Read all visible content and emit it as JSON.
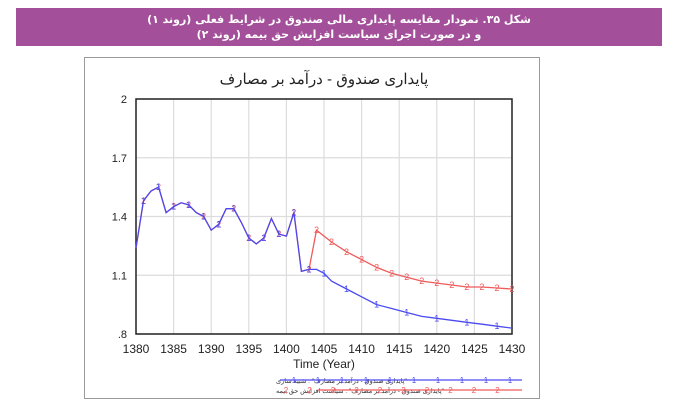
{
  "caption": {
    "line1": "شکل ۳۵. نمودار مقایسه پایداری مالی صندوق در شرایط فعلی (روند ۱)",
    "line2": "و در صورت اجرای سیاست افزایش حق بیمه (روند ۲)",
    "background_color": "#a34f9a"
  },
  "chart_data": {
    "type": "line",
    "title": "پایداری صندوق - درآمد بر مصارف",
    "xlabel": "Time (Year)",
    "ylabel": "",
    "xlim": [
      1380,
      1430
    ],
    "ylim": [
      0.8,
      2.0
    ],
    "x_ticks": [
      "1380",
      "1385",
      "1390",
      "1395",
      "1400",
      "1405",
      "1410",
      "1415",
      "1420",
      "1425",
      "1430"
    ],
    "y_ticks": [
      "2",
      "1.7",
      "1.4",
      "1.1",
      ".8"
    ],
    "grid": true,
    "legend_position": "bottom",
    "series": [
      {
        "name": "\"پایداری صندوق - درآمد بر مصارف\" : شبیه سازی",
        "marker": "1",
        "color": "#4a4af0",
        "x": [
          1380,
          1381,
          1382,
          1383,
          1384,
          1385,
          1386,
          1387,
          1388,
          1389,
          1390,
          1391,
          1392,
          1393,
          1394,
          1395,
          1396,
          1397,
          1398,
          1399,
          1400,
          1401,
          1402,
          1403,
          1404,
          1405,
          1406,
          1408,
          1410,
          1412,
          1414,
          1416,
          1418,
          1420,
          1422,
          1424,
          1426,
          1428,
          1430
        ],
        "y": [
          1.24,
          1.48,
          1.53,
          1.55,
          1.42,
          1.45,
          1.47,
          1.46,
          1.42,
          1.4,
          1.33,
          1.36,
          1.44,
          1.44,
          1.37,
          1.29,
          1.26,
          1.29,
          1.39,
          1.31,
          1.3,
          1.42,
          1.12,
          1.13,
          1.13,
          1.11,
          1.07,
          1.03,
          0.99,
          0.95,
          0.93,
          0.91,
          0.89,
          0.88,
          0.87,
          0.86,
          0.85,
          0.84,
          0.83
        ]
      },
      {
        "name": "\"پایداری صندوق - درآمد بر مصارف\" : سیاست افزایش حق بیمه",
        "marker": "2",
        "color": "#f05a5a",
        "x": [
          1380,
          1381,
          1382,
          1383,
          1384,
          1385,
          1386,
          1387,
          1388,
          1389,
          1390,
          1391,
          1392,
          1393,
          1394,
          1395,
          1396,
          1397,
          1398,
          1399,
          1400,
          1401,
          1402,
          1403,
          1404,
          1406,
          1408,
          1410,
          1412,
          1414,
          1416,
          1418,
          1420,
          1422,
          1424,
          1426,
          1428,
          1430
        ],
        "y": [
          1.24,
          1.48,
          1.53,
          1.55,
          1.42,
          1.45,
          1.47,
          1.46,
          1.42,
          1.4,
          1.33,
          1.36,
          1.44,
          1.44,
          1.37,
          1.29,
          1.26,
          1.29,
          1.39,
          1.31,
          1.3,
          1.42,
          1.12,
          1.13,
          1.33,
          1.27,
          1.22,
          1.18,
          1.14,
          1.11,
          1.09,
          1.07,
          1.06,
          1.05,
          1.04,
          1.04,
          1.035,
          1.03
        ]
      }
    ]
  }
}
